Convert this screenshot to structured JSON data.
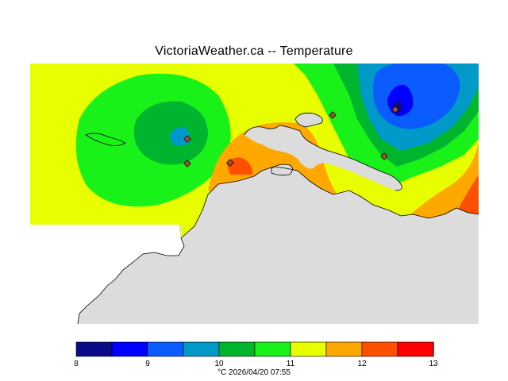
{
  "header": {
    "title": "VictoriaWeather.ca  --  Temperature"
  },
  "legend": {
    "colors": [
      "#0b0b8a",
      "#0000ff",
      "#0a5cff",
      "#0099c8",
      "#00b52e",
      "#19f219",
      "#e7ff00",
      "#ffa800",
      "#ff5000",
      "#ff0000"
    ],
    "ticks": [
      "8",
      "9",
      "10",
      "11",
      "12",
      "13"
    ]
  },
  "footer": {
    "caption": "°C  2026/04/20 07:55"
  },
  "map": {
    "land_color": "#dcdcdc",
    "stations": [
      "station",
      "station",
      "station",
      "station",
      "station",
      "station"
    ]
  }
}
